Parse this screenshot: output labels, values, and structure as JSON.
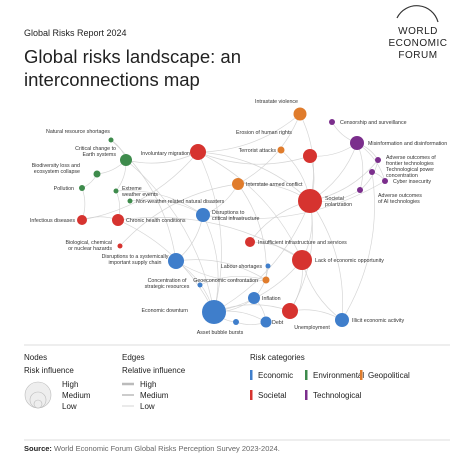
{
  "header": {
    "report": "Global Risks Report 2024",
    "title": [
      "Global risks landscape: an",
      "interconnections map"
    ],
    "logo": [
      "WORLD",
      "ECONOMIC",
      "FORUM"
    ]
  },
  "categories": [
    {
      "name": "Economic",
      "color": "#3f7ecb"
    },
    {
      "name": "Environmental",
      "color": "#3e8b4c"
    },
    {
      "name": "Geopolitical",
      "color": "#e07c2c"
    },
    {
      "name": "Societal",
      "color": "#d6332f"
    },
    {
      "name": "Technological",
      "color": "#7b2e8c"
    }
  ],
  "nodes": [
    {
      "label": [
        "Intrastate violence"
      ],
      "category": "Geopolitical"
    },
    {
      "label": [
        "Censorship and surveillance"
      ],
      "category": "Technological"
    },
    {
      "label": [
        "Misinformation and disinformation"
      ],
      "category": "Technological"
    },
    {
      "label": [
        "Erosion of human rights"
      ],
      "category": "Societal"
    },
    {
      "label": [
        "Terrorist attacks"
      ],
      "category": "Geopolitical"
    },
    {
      "label": [
        "Involuntary migration"
      ],
      "category": "Societal"
    },
    {
      "label": [
        "Natural resource shortages"
      ],
      "category": "Environmental"
    },
    {
      "label": [
        "Critical change to",
        "Earth systems"
      ],
      "category": "Environmental"
    },
    {
      "label": [
        "Biodiversity loss and",
        "ecosystem collapse"
      ],
      "category": "Environmental"
    },
    {
      "label": [
        "Pollution"
      ],
      "category": "Environmental"
    },
    {
      "label": [
        "Extreme",
        "weather events"
      ],
      "category": "Environmental"
    },
    {
      "label": [
        "Non-weather related natural disasters"
      ],
      "category": "Environmental"
    },
    {
      "label": [
        "Adverse outcomes of",
        "frontier technologies"
      ],
      "category": "Technological"
    },
    {
      "label": [
        "Technological power",
        "concentration"
      ],
      "category": "Technological"
    },
    {
      "label": [
        "Cyber insecurity"
      ],
      "category": "Technological"
    },
    {
      "label": [
        "Adverse outcomes",
        "of AI technologies"
      ],
      "category": "Technological"
    },
    {
      "label": [
        "Interstate armed conflict"
      ],
      "category": "Geopolitical"
    },
    {
      "label": [
        "Societal",
        "polarization"
      ],
      "category": "Societal"
    },
    {
      "label": [
        "Infectious diseases"
      ],
      "category": "Societal"
    },
    {
      "label": [
        "Chronic health conditions"
      ],
      "category": "Societal"
    },
    {
      "label": [
        "Disruptions to",
        "critical infrastructure"
      ],
      "category": "Economic"
    },
    {
      "label": [
        "Insufficient infrastructure and services"
      ],
      "category": "Societal"
    },
    {
      "label": [
        "Biological, chemical",
        "or nuclear hazards"
      ],
      "category": "Societal"
    },
    {
      "label": [
        "Disruptions to a systemically",
        "important supply chain"
      ],
      "category": "Economic"
    },
    {
      "label": [
        "Labour shortages"
      ],
      "category": "Economic"
    },
    {
      "label": [
        "Lack of economic opportunity"
      ],
      "category": "Societal"
    },
    {
      "label": [
        "Geoeconomic confrontation"
      ],
      "category": "Geopolitical"
    },
    {
      "label": [
        "Concentration of",
        "strategic resources"
      ],
      "category": "Economic"
    },
    {
      "label": [
        "Inflation"
      ],
      "category": "Economic"
    },
    {
      "label": [
        "Economic downturn"
      ],
      "category": "Economic"
    },
    {
      "label": [
        "Unemployment"
      ],
      "category": "Societal"
    },
    {
      "label": [
        "Debt"
      ],
      "category": "Economic"
    },
    {
      "label": [
        "Asset bubble bursts"
      ],
      "category": "Economic"
    },
    {
      "label": [
        "Illicit economic activity"
      ],
      "category": "Economic"
    }
  ],
  "legend": {
    "nodes": {
      "title": "Nodes",
      "subtitle": "Risk influence",
      "levels": [
        "High",
        "Medium",
        "Low"
      ]
    },
    "edges": {
      "title": "Edges",
      "subtitle": "Relative influence",
      "levels": [
        "High",
        "Medium",
        "Low"
      ]
    },
    "categories_title": "Risk categories"
  },
  "source": {
    "label": "Source:",
    "text": "World Economic Forum Global Risks Perception Survey 2023-2024."
  }
}
